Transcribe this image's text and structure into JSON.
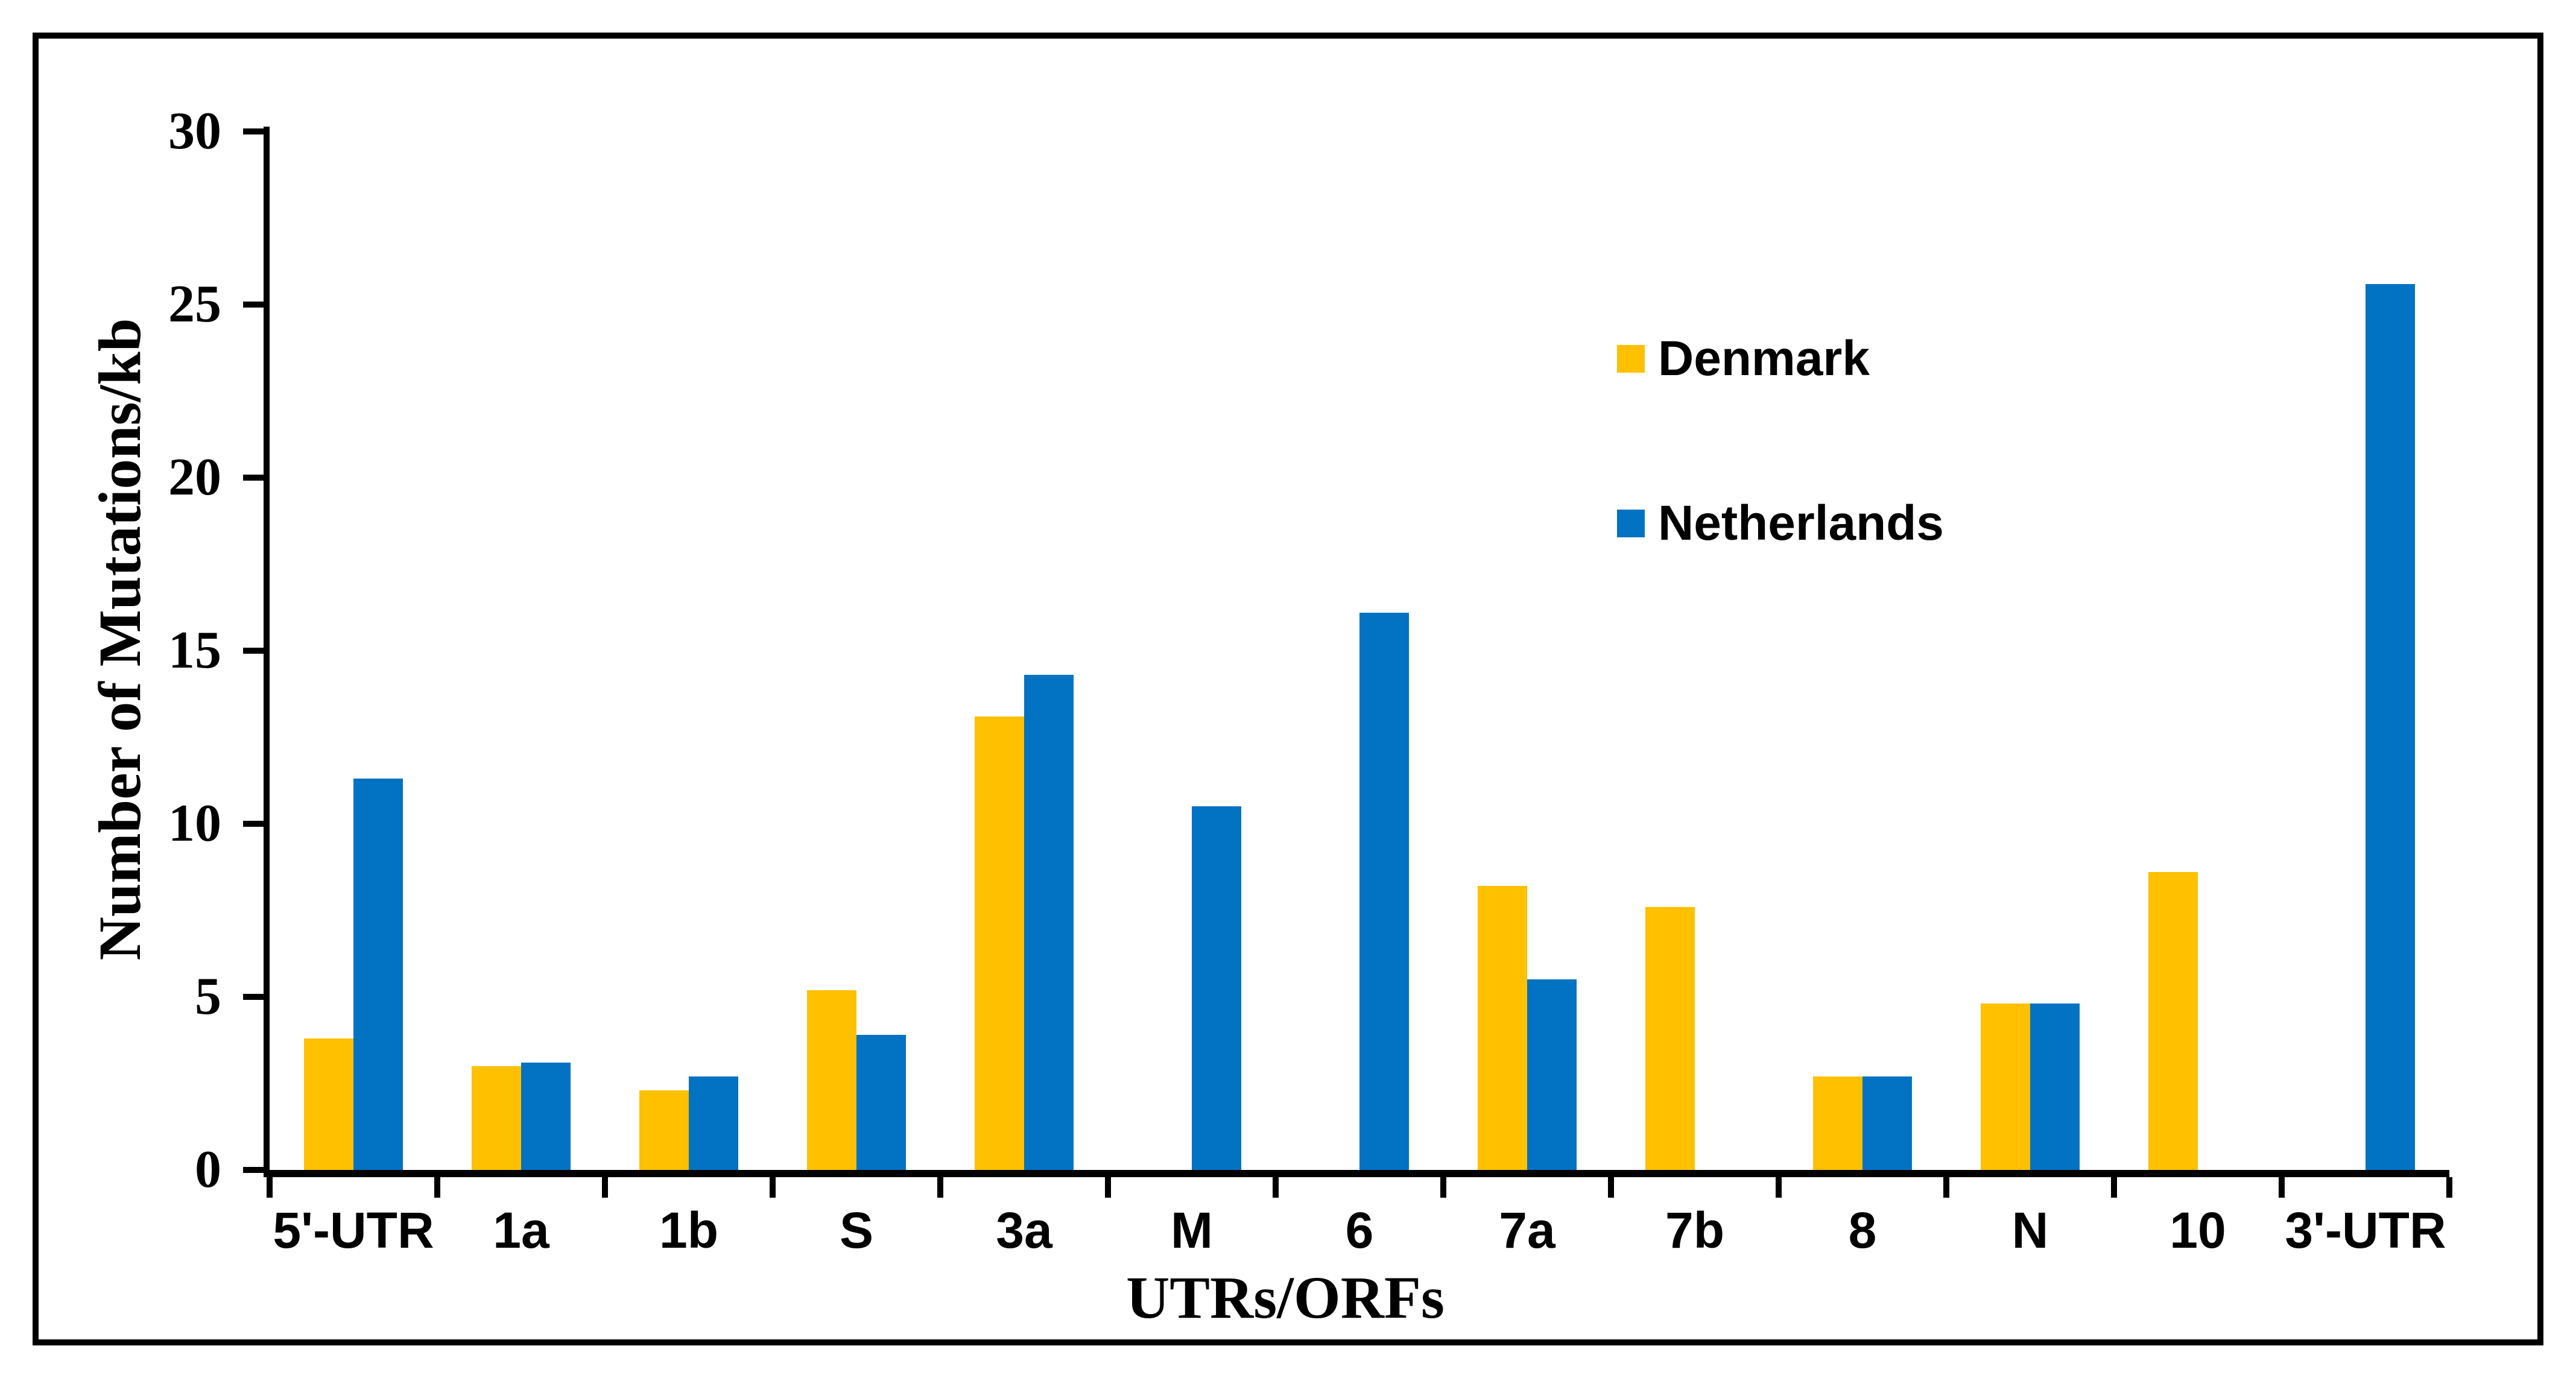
{
  "figure": {
    "background": "#FFFFFF",
    "border_color": "#000000"
  },
  "chart_data": {
    "type": "bar",
    "title": "",
    "xlabel": "UTRs/ORFs",
    "ylabel": "Number of Mutations/kb",
    "categories": [
      "5'-UTR",
      "1a",
      "1b",
      "S",
      "3a",
      "M",
      "6",
      "7a",
      "7b",
      "8",
      "N",
      "10",
      "3'-UTR"
    ],
    "series": [
      {
        "name": "Denmark",
        "color": "#FFC000",
        "values": [
          3.8,
          3.0,
          2.3,
          5.2,
          13.1,
          0,
          0,
          8.2,
          7.6,
          2.7,
          4.8,
          8.6,
          0
        ]
      },
      {
        "name": "Netherlands",
        "color": "#0272C2",
        "values": [
          11.3,
          3.1,
          2.7,
          3.9,
          14.3,
          10.5,
          16.1,
          5.5,
          0,
          2.7,
          4.8,
          0,
          25.6
        ]
      }
    ],
    "ylim": [
      0,
      30
    ],
    "y_tick_step": 5,
    "y_ticks": [
      "0",
      "5",
      "10",
      "15",
      "20",
      "25",
      "30"
    ],
    "grid": false,
    "legend_position": "inside-upper-right",
    "axis_color": "#000000"
  }
}
